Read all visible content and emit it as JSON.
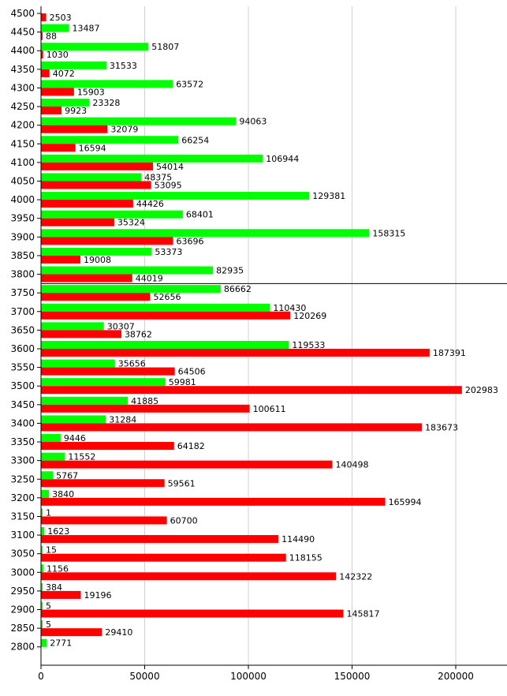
{
  "chart_data": {
    "type": "bar",
    "orientation": "horizontal",
    "categories": [
      "4500",
      "4450",
      "4400",
      "4350",
      "4300",
      "4250",
      "4200",
      "4150",
      "4100",
      "4050",
      "4000",
      "3950",
      "3900",
      "3850",
      "3800",
      "3750",
      "3700",
      "3650",
      "3600",
      "3550",
      "3500",
      "3450",
      "3400",
      "3350",
      "3300",
      "3250",
      "3200",
      "3150",
      "3100",
      "3050",
      "3000",
      "2950",
      "2900",
      "2850",
      "2800"
    ],
    "series": [
      {
        "color": "#00ff00",
        "values": [
          null,
          13487,
          51807,
          31533,
          63572,
          23328,
          94063,
          66254,
          106944,
          48375,
          129381,
          68401,
          158315,
          53373,
          82935,
          86662,
          110430,
          30307,
          119533,
          35656,
          59981,
          41885,
          31284,
          9446,
          11552,
          5767,
          3840,
          1,
          1623,
          15,
          1156,
          384,
          5,
          5,
          2771
        ]
      },
      {
        "color": "#ff0000",
        "values": [
          2503,
          88,
          1030,
          4072,
          15903,
          9923,
          32079,
          16594,
          54014,
          53095,
          44426,
          35324,
          63696,
          19008,
          44019,
          52656,
          120269,
          38762,
          187391,
          64506,
          202983,
          100611,
          183673,
          64182,
          140498,
          59561,
          165994,
          60700,
          114490,
          118155,
          142322,
          19196,
          145817,
          29410,
          null
        ]
      }
    ],
    "x_ticks": [
      "0",
      "50000",
      "100000",
      "150000",
      "200000"
    ],
    "xlim": [
      0,
      220000
    ],
    "grid": true,
    "separator_after_category": "3800",
    "legend": "none"
  }
}
